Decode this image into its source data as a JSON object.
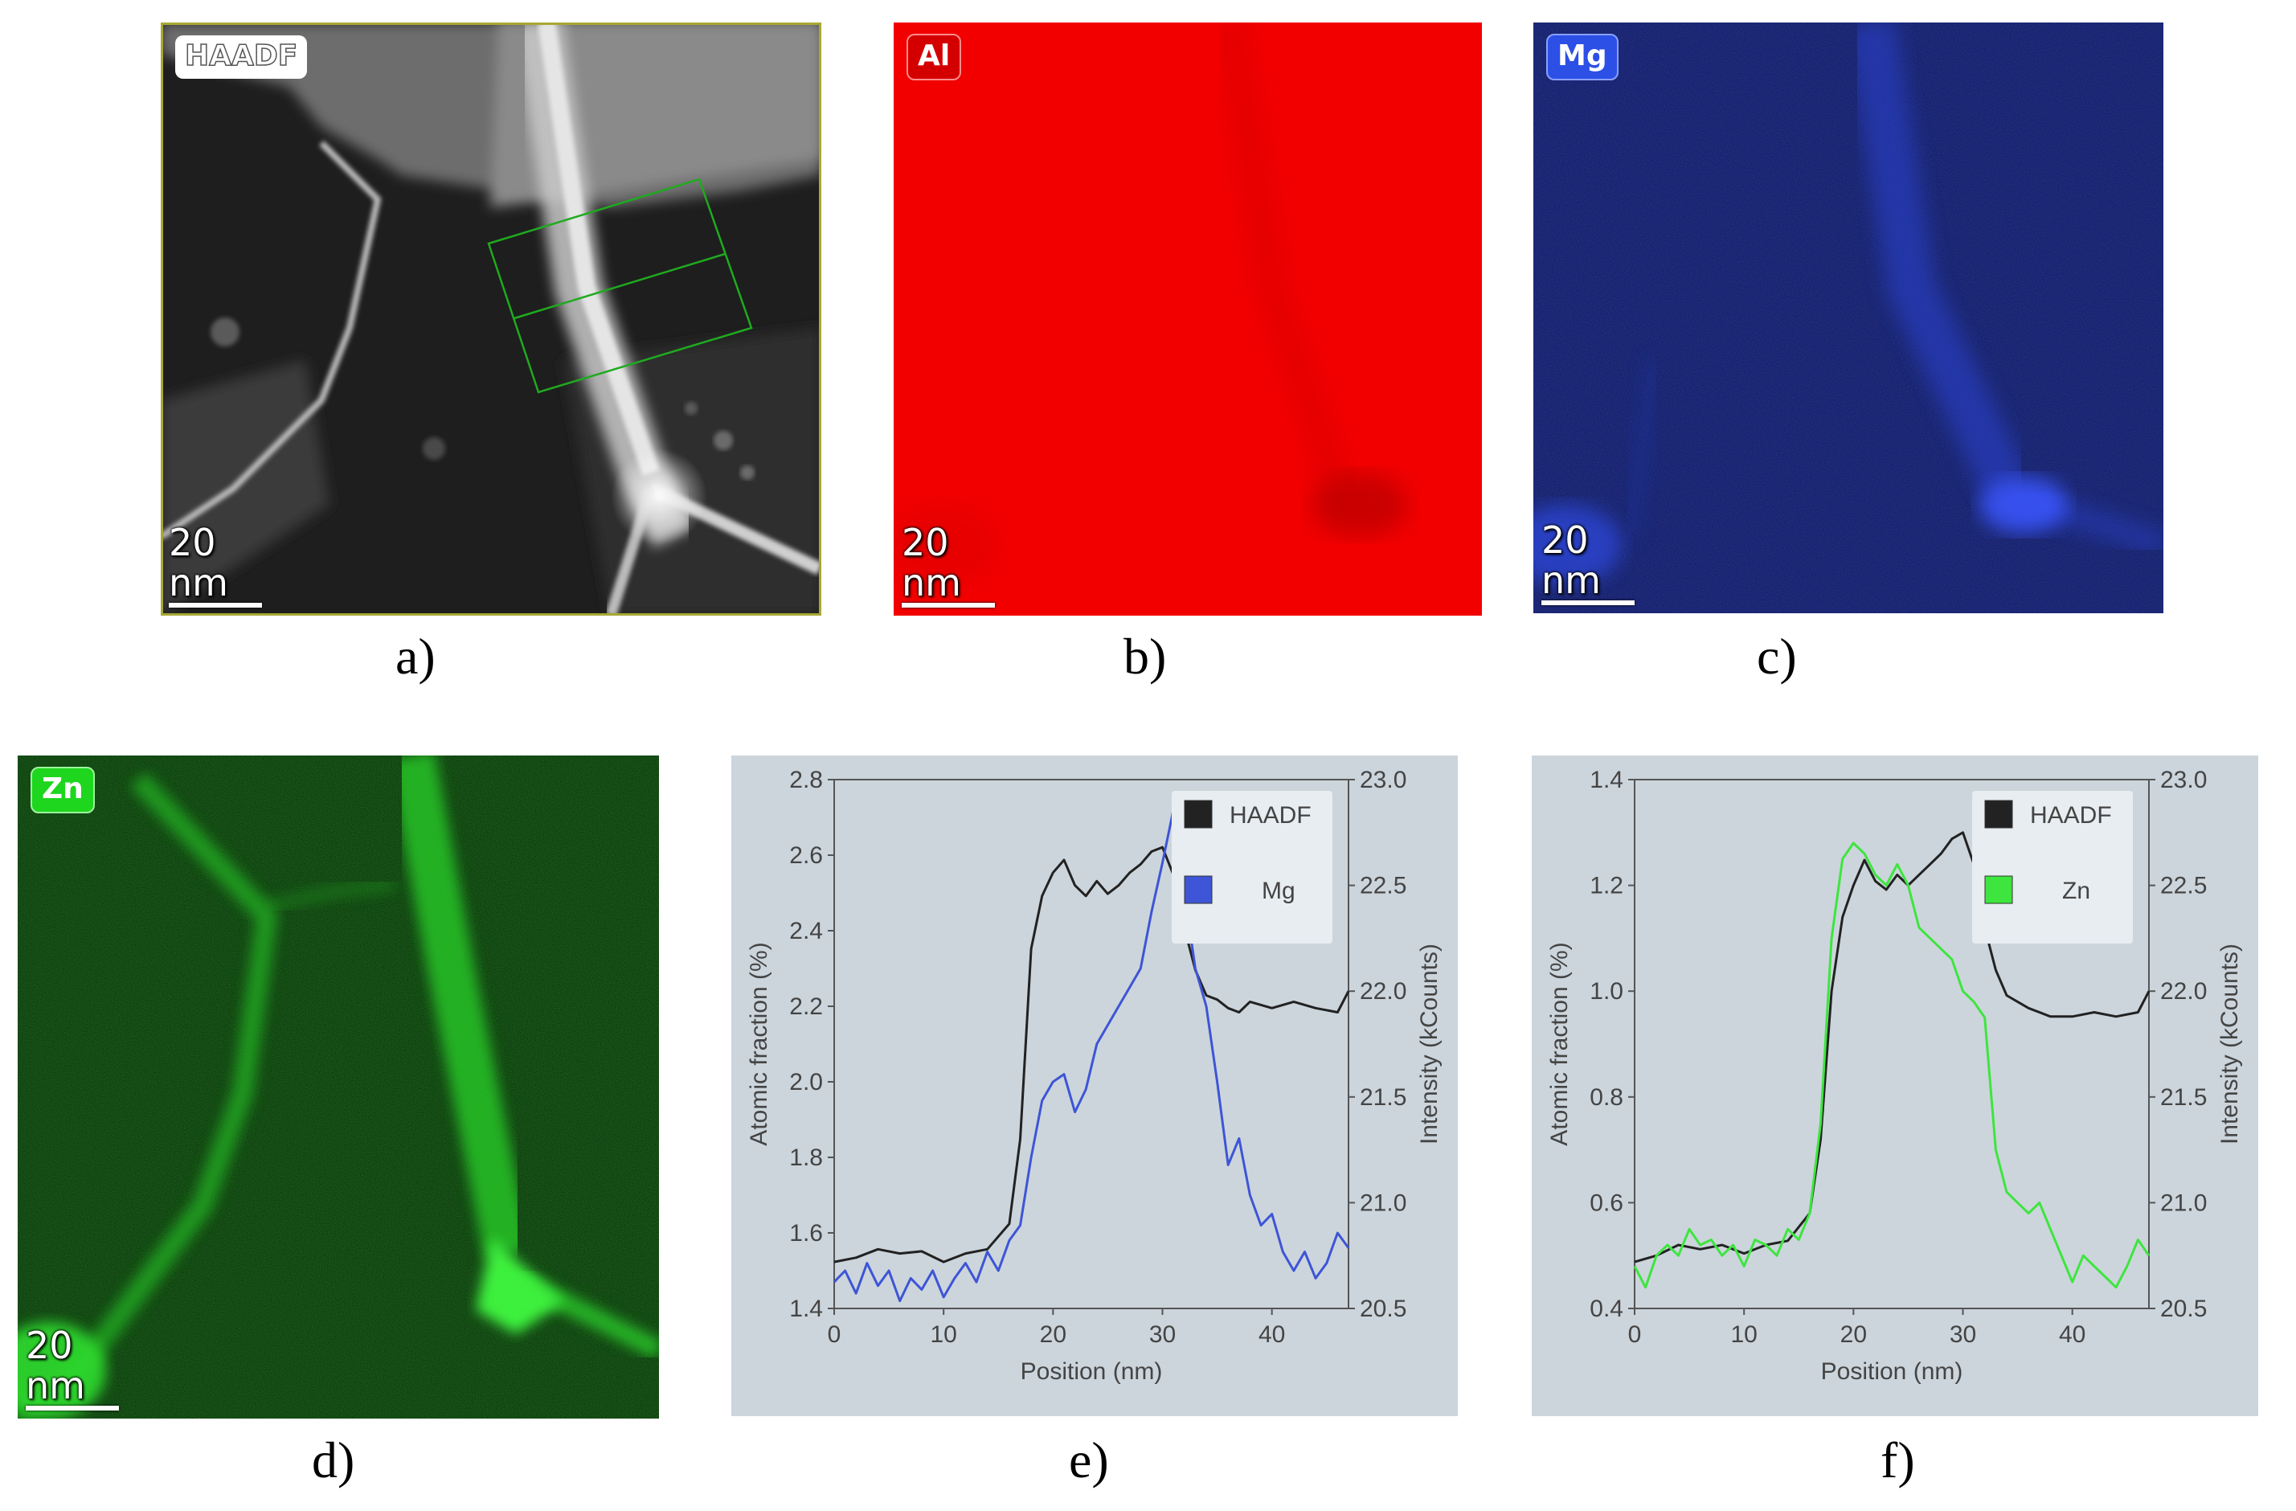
{
  "figure": {
    "panels": {
      "a": {
        "label": "a)",
        "tag": "HAADF",
        "scale_bar": "20 nm"
      },
      "b": {
        "label": "b)",
        "tag": "Al",
        "scale_bar": "20 nm"
      },
      "c": {
        "label": "c)",
        "tag": "Mg",
        "scale_bar": "20 nm"
      },
      "d": {
        "label": "d)",
        "tag": "Zn",
        "scale_bar": "20 nm"
      },
      "e": {
        "label": "e)"
      },
      "f": {
        "label": "f)"
      }
    },
    "colors": {
      "al": "#f20000",
      "mg_bg": "#0a1450",
      "zn_bg": "#062a06",
      "haadf_line": "#222222",
      "mg_line": "#3d55d6",
      "zn_line": "#3ee53e",
      "chart_bg": "#ccd5dc"
    }
  },
  "chart_data": [
    {
      "type": "line",
      "panel": "e",
      "xlabel": "Position (nm)",
      "ylabel_left": "Atomic fraction (%)",
      "ylabel_right": "Intensity (kCounts)",
      "xlim": [
        0,
        47
      ],
      "ylim_left": [
        1.4,
        2.8
      ],
      "ylim_right": [
        20.5,
        23.0
      ],
      "x_ticks": [
        "0",
        "10",
        "20",
        "30",
        "40"
      ],
      "y_ticks_left": [
        "1.4",
        "1.6",
        "1.8",
        "2.0",
        "2.2",
        "2.4",
        "2.6",
        "2.8"
      ],
      "y_ticks_right": [
        "20.5",
        "21.0",
        "21.5",
        "22.0",
        "22.5",
        "23.0"
      ],
      "legend": [
        "HAADF",
        "Mg"
      ],
      "series": [
        {
          "name": "HAADF",
          "axis": "right",
          "color": "#222222",
          "x": [
            0,
            2,
            4,
            6,
            8,
            10,
            12,
            14,
            16,
            17,
            18,
            19,
            20,
            21,
            22,
            23,
            24,
            25,
            26,
            27,
            28,
            29,
            30,
            31,
            32,
            33,
            34,
            35,
            36,
            37,
            38,
            40,
            42,
            44,
            46,
            47
          ],
          "y": [
            20.72,
            20.74,
            20.78,
            20.76,
            20.77,
            20.72,
            20.76,
            20.78,
            20.9,
            21.3,
            22.2,
            22.45,
            22.56,
            22.62,
            22.5,
            22.45,
            22.52,
            22.46,
            22.5,
            22.56,
            22.6,
            22.66,
            22.68,
            22.55,
            22.3,
            22.1,
            21.98,
            21.96,
            21.92,
            21.9,
            21.95,
            21.92,
            21.95,
            21.92,
            21.9,
            22.0
          ]
        },
        {
          "name": "Mg",
          "axis": "left",
          "color": "#3d55d6",
          "x": [
            0,
            1,
            2,
            3,
            4,
            5,
            6,
            7,
            8,
            9,
            10,
            11,
            12,
            13,
            14,
            15,
            16,
            17,
            18,
            19,
            20,
            21,
            22,
            23,
            24,
            25,
            26,
            27,
            28,
            29,
            30,
            31,
            32,
            33,
            34,
            35,
            36,
            37,
            38,
            39,
            40,
            41,
            42,
            43,
            44,
            45,
            46,
            47
          ],
          "y": [
            1.47,
            1.5,
            1.44,
            1.52,
            1.46,
            1.5,
            1.42,
            1.48,
            1.45,
            1.5,
            1.43,
            1.48,
            1.52,
            1.47,
            1.55,
            1.5,
            1.58,
            1.62,
            1.8,
            1.95,
            2.0,
            2.02,
            1.92,
            1.98,
            2.1,
            2.15,
            2.2,
            2.25,
            2.3,
            2.45,
            2.58,
            2.72,
            2.5,
            2.3,
            2.2,
            2.0,
            1.78,
            1.85,
            1.7,
            1.62,
            1.65,
            1.55,
            1.5,
            1.55,
            1.48,
            1.52,
            1.6,
            1.56
          ]
        }
      ]
    },
    {
      "type": "line",
      "panel": "f",
      "xlabel": "Position (nm)",
      "ylabel_left": "Atomic fraction (%)",
      "ylabel_right": "Intensity (kCounts)",
      "xlim": [
        0,
        47
      ],
      "ylim_left": [
        0.4,
        1.4
      ],
      "ylim_right": [
        20.5,
        23.0
      ],
      "x_ticks": [
        "0",
        "10",
        "20",
        "30",
        "40"
      ],
      "y_ticks_left": [
        "0.4",
        "0.6",
        "0.8",
        "1.0",
        "1.2",
        "1.4"
      ],
      "y_ticks_right": [
        "20.5",
        "21.0",
        "21.5",
        "22.0",
        "22.5",
        "23.0"
      ],
      "legend": [
        "HAADF",
        "Zn"
      ],
      "series": [
        {
          "name": "HAADF",
          "axis": "right",
          "color": "#222222",
          "x": [
            0,
            2,
            4,
            6,
            8,
            10,
            12,
            14,
            16,
            17,
            18,
            19,
            20,
            21,
            22,
            23,
            24,
            25,
            26,
            27,
            28,
            29,
            30,
            31,
            32,
            33,
            34,
            35,
            36,
            38,
            40,
            42,
            44,
            46,
            47
          ],
          "y": [
            20.72,
            20.75,
            20.8,
            20.78,
            20.8,
            20.76,
            20.8,
            20.82,
            20.95,
            21.3,
            22.0,
            22.35,
            22.5,
            22.62,
            22.52,
            22.48,
            22.55,
            22.5,
            22.55,
            22.6,
            22.65,
            22.72,
            22.75,
            22.6,
            22.3,
            22.1,
            21.98,
            21.95,
            21.92,
            21.88,
            21.88,
            21.9,
            21.88,
            21.9,
            22.0
          ]
        },
        {
          "name": "Zn",
          "axis": "left",
          "color": "#3ee53e",
          "x": [
            0,
            1,
            2,
            3,
            4,
            5,
            6,
            7,
            8,
            9,
            10,
            11,
            12,
            13,
            14,
            15,
            16,
            17,
            18,
            19,
            20,
            21,
            22,
            23,
            24,
            25,
            26,
            27,
            28,
            29,
            30,
            31,
            32,
            33,
            34,
            35,
            36,
            37,
            38,
            39,
            40,
            41,
            42,
            43,
            44,
            45,
            46,
            47
          ],
          "y": [
            0.48,
            0.44,
            0.5,
            0.52,
            0.5,
            0.55,
            0.52,
            0.53,
            0.5,
            0.52,
            0.48,
            0.53,
            0.52,
            0.5,
            0.55,
            0.53,
            0.58,
            0.75,
            1.1,
            1.25,
            1.28,
            1.26,
            1.22,
            1.2,
            1.24,
            1.2,
            1.12,
            1.1,
            1.08,
            1.06,
            1.0,
            0.98,
            0.95,
            0.7,
            0.62,
            0.6,
            0.58,
            0.6,
            0.55,
            0.5,
            0.45,
            0.5,
            0.48,
            0.46,
            0.44,
            0.48,
            0.53,
            0.5
          ]
        }
      ]
    }
  ]
}
